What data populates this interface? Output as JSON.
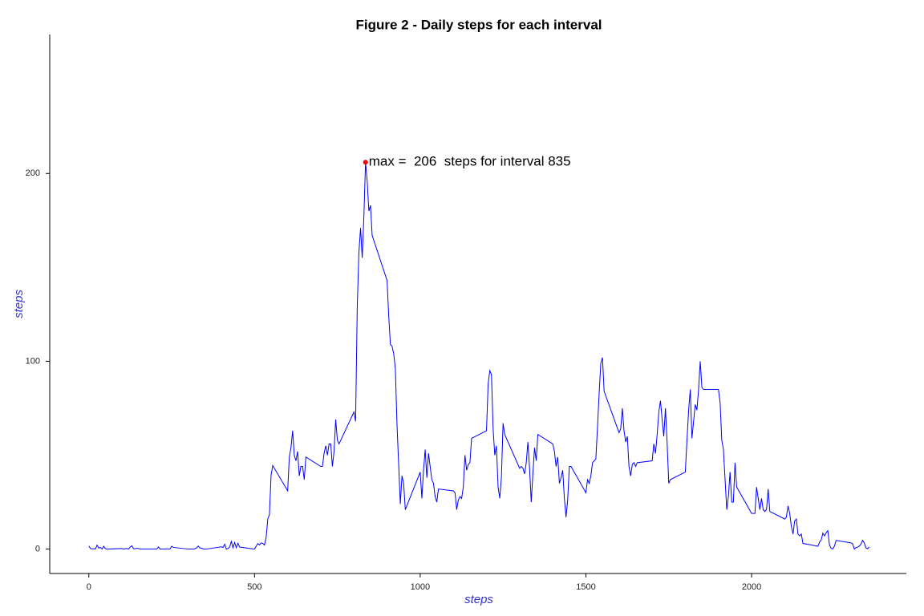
{
  "chart_data": {
    "type": "line",
    "title": "Figure 2 - Daily steps for each interval",
    "x_label": "steps",
    "y_label": "steps",
    "xlim": [
      -118,
      2467
    ],
    "ylim": [
      -13,
      274
    ],
    "xticks": [
      0,
      500,
      1000,
      1500,
      2000
    ],
    "yticks": [
      0,
      100,
      200
    ],
    "grid": false,
    "annotation": {
      "text": "max =  206  steps for interval 835",
      "x": 835,
      "y": 206,
      "color": "#ff0000"
    },
    "x": [
      0,
      5,
      10,
      15,
      20,
      25,
      30,
      35,
      40,
      45,
      50,
      55,
      100,
      105,
      110,
      115,
      120,
      125,
      130,
      135,
      140,
      145,
      150,
      155,
      200,
      205,
      210,
      215,
      220,
      225,
      230,
      235,
      240,
      245,
      250,
      255,
      300,
      305,
      310,
      315,
      320,
      325,
      330,
      335,
      340,
      345,
      350,
      355,
      400,
      405,
      410,
      415,
      420,
      425,
      430,
      435,
      440,
      445,
      450,
      455,
      500,
      505,
      510,
      515,
      520,
      525,
      530,
      535,
      540,
      545,
      550,
      555,
      600,
      605,
      610,
      615,
      620,
      625,
      630,
      635,
      640,
      645,
      650,
      655,
      700,
      705,
      710,
      715,
      720,
      725,
      730,
      735,
      740,
      745,
      750,
      755,
      800,
      805,
      810,
      815,
      820,
      825,
      830,
      835,
      840,
      845,
      850,
      855,
      900,
      905,
      910,
      915,
      920,
      925,
      930,
      935,
      940,
      945,
      950,
      955,
      1000,
      1005,
      1010,
      1015,
      1020,
      1025,
      1030,
      1035,
      1040,
      1045,
      1050,
      1055,
      1100,
      1105,
      1110,
      1115,
      1120,
      1125,
      1130,
      1135,
      1140,
      1145,
      1150,
      1155,
      1200,
      1205,
      1210,
      1215,
      1220,
      1225,
      1230,
      1235,
      1240,
      1245,
      1250,
      1255,
      1300,
      1305,
      1310,
      1315,
      1320,
      1325,
      1330,
      1335,
      1340,
      1345,
      1350,
      1355,
      1400,
      1405,
      1410,
      1415,
      1420,
      1425,
      1430,
      1435,
      1440,
      1445,
      1450,
      1455,
      1500,
      1505,
      1510,
      1515,
      1520,
      1525,
      1530,
      1535,
      1540,
      1545,
      1550,
      1555,
      1600,
      1605,
      1610,
      1615,
      1620,
      1625,
      1630,
      1635,
      1640,
      1645,
      1650,
      1655,
      1700,
      1705,
      1710,
      1715,
      1720,
      1725,
      1730,
      1735,
      1740,
      1745,
      1750,
      1755,
      1800,
      1805,
      1810,
      1815,
      1820,
      1825,
      1830,
      1835,
      1840,
      1845,
      1850,
      1855,
      1900,
      1905,
      1910,
      1915,
      1920,
      1925,
      1930,
      1935,
      1940,
      1945,
      1950,
      1955,
      2000,
      2005,
      2010,
      2015,
      2020,
      2025,
      2030,
      2035,
      2040,
      2045,
      2050,
      2055,
      2100,
      2105,
      2110,
      2115,
      2120,
      2125,
      2130,
      2135,
      2140,
      2145,
      2150,
      2155,
      2200,
      2205,
      2210,
      2215,
      2220,
      2225,
      2230,
      2235,
      2240,
      2245,
      2250,
      2255,
      2300,
      2305,
      2310,
      2315,
      2320,
      2325,
      2330,
      2335,
      2340,
      2345,
      2350,
      2355
    ],
    "series": [
      {
        "name": "steps",
        "color": "#0000ff",
        "values": [
          1.7,
          0.3,
          0.1,
          0.2,
          0.1,
          2.1,
          0.5,
          0.9,
          0,
          1.5,
          0.2,
          0,
          0.3,
          0,
          0.2,
          0.3,
          0,
          1.1,
          1.8,
          0.2,
          0.2,
          0.4,
          0.3,
          0,
          0,
          0,
          1.1,
          0,
          0,
          0.1,
          0,
          0.2,
          0,
          0,
          1.5,
          0.9,
          0,
          0,
          0,
          0,
          0.2,
          0.6,
          1.6,
          0.6,
          0.5,
          0.1,
          0,
          0,
          1.2,
          0.9,
          2.6,
          0,
          0.3,
          1.1,
          4.1,
          0.7,
          3.5,
          0.8,
          3.1,
          1.1,
          0,
          1.5,
          3,
          2.2,
          3.3,
          3,
          2.1,
          6.1,
          16,
          18.3,
          39.5,
          44.5,
          31,
          49,
          54,
          63,
          50,
          47,
          52,
          39,
          44,
          44,
          37,
          49,
          44,
          44,
          51,
          55,
          50,
          56,
          56,
          44,
          52,
          69,
          58,
          56,
          73,
          68,
          129,
          158,
          171,
          155,
          177,
          206,
          196,
          180,
          183,
          167,
          143,
          124,
          109,
          108,
          104,
          96,
          66,
          45,
          24,
          39,
          35,
          21,
          41,
          27,
          42,
          53,
          38,
          51,
          44,
          37,
          35,
          28,
          25,
          32,
          31,
          30,
          21,
          26,
          28,
          27,
          33,
          50,
          42,
          45,
          46,
          59,
          63,
          88,
          95,
          93,
          64,
          50,
          55,
          33,
          27,
          38,
          67,
          61,
          43,
          44,
          43,
          40,
          46,
          57,
          43,
          25,
          40,
          54,
          47,
          61,
          56,
          52,
          44,
          49,
          35,
          38,
          42,
          27,
          17,
          26,
          44,
          44,
          30,
          37,
          35,
          39,
          46,
          47,
          48,
          65,
          83,
          99,
          102,
          84,
          62,
          64,
          75,
          63,
          57,
          60,
          44,
          39,
          45,
          46,
          44,
          46,
          47,
          56,
          51,
          61,
          73,
          79,
          69,
          60,
          75,
          57,
          35,
          37,
          41,
          58,
          74,
          85,
          59,
          68,
          77,
          74,
          85,
          100,
          86,
          85,
          85,
          78,
          58,
          53,
          37,
          21,
          28,
          41,
          25,
          25,
          46,
          33,
          19,
          19,
          19,
          33,
          27,
          21,
          27,
          21,
          20,
          21,
          32,
          20,
          16,
          17,
          23,
          19,
          12,
          8,
          15,
          16,
          8,
          7,
          8,
          3,
          1.5,
          3.7,
          4.8,
          8.5,
          7,
          8.7,
          9.8,
          2.2,
          0.3,
          0.1,
          1.6,
          4.6,
          3.3,
          2.8,
          0,
          0.8,
          1,
          1.6,
          2.6,
          4.7,
          3.3,
          0.6,
          0.2,
          1.1
        ]
      }
    ]
  }
}
